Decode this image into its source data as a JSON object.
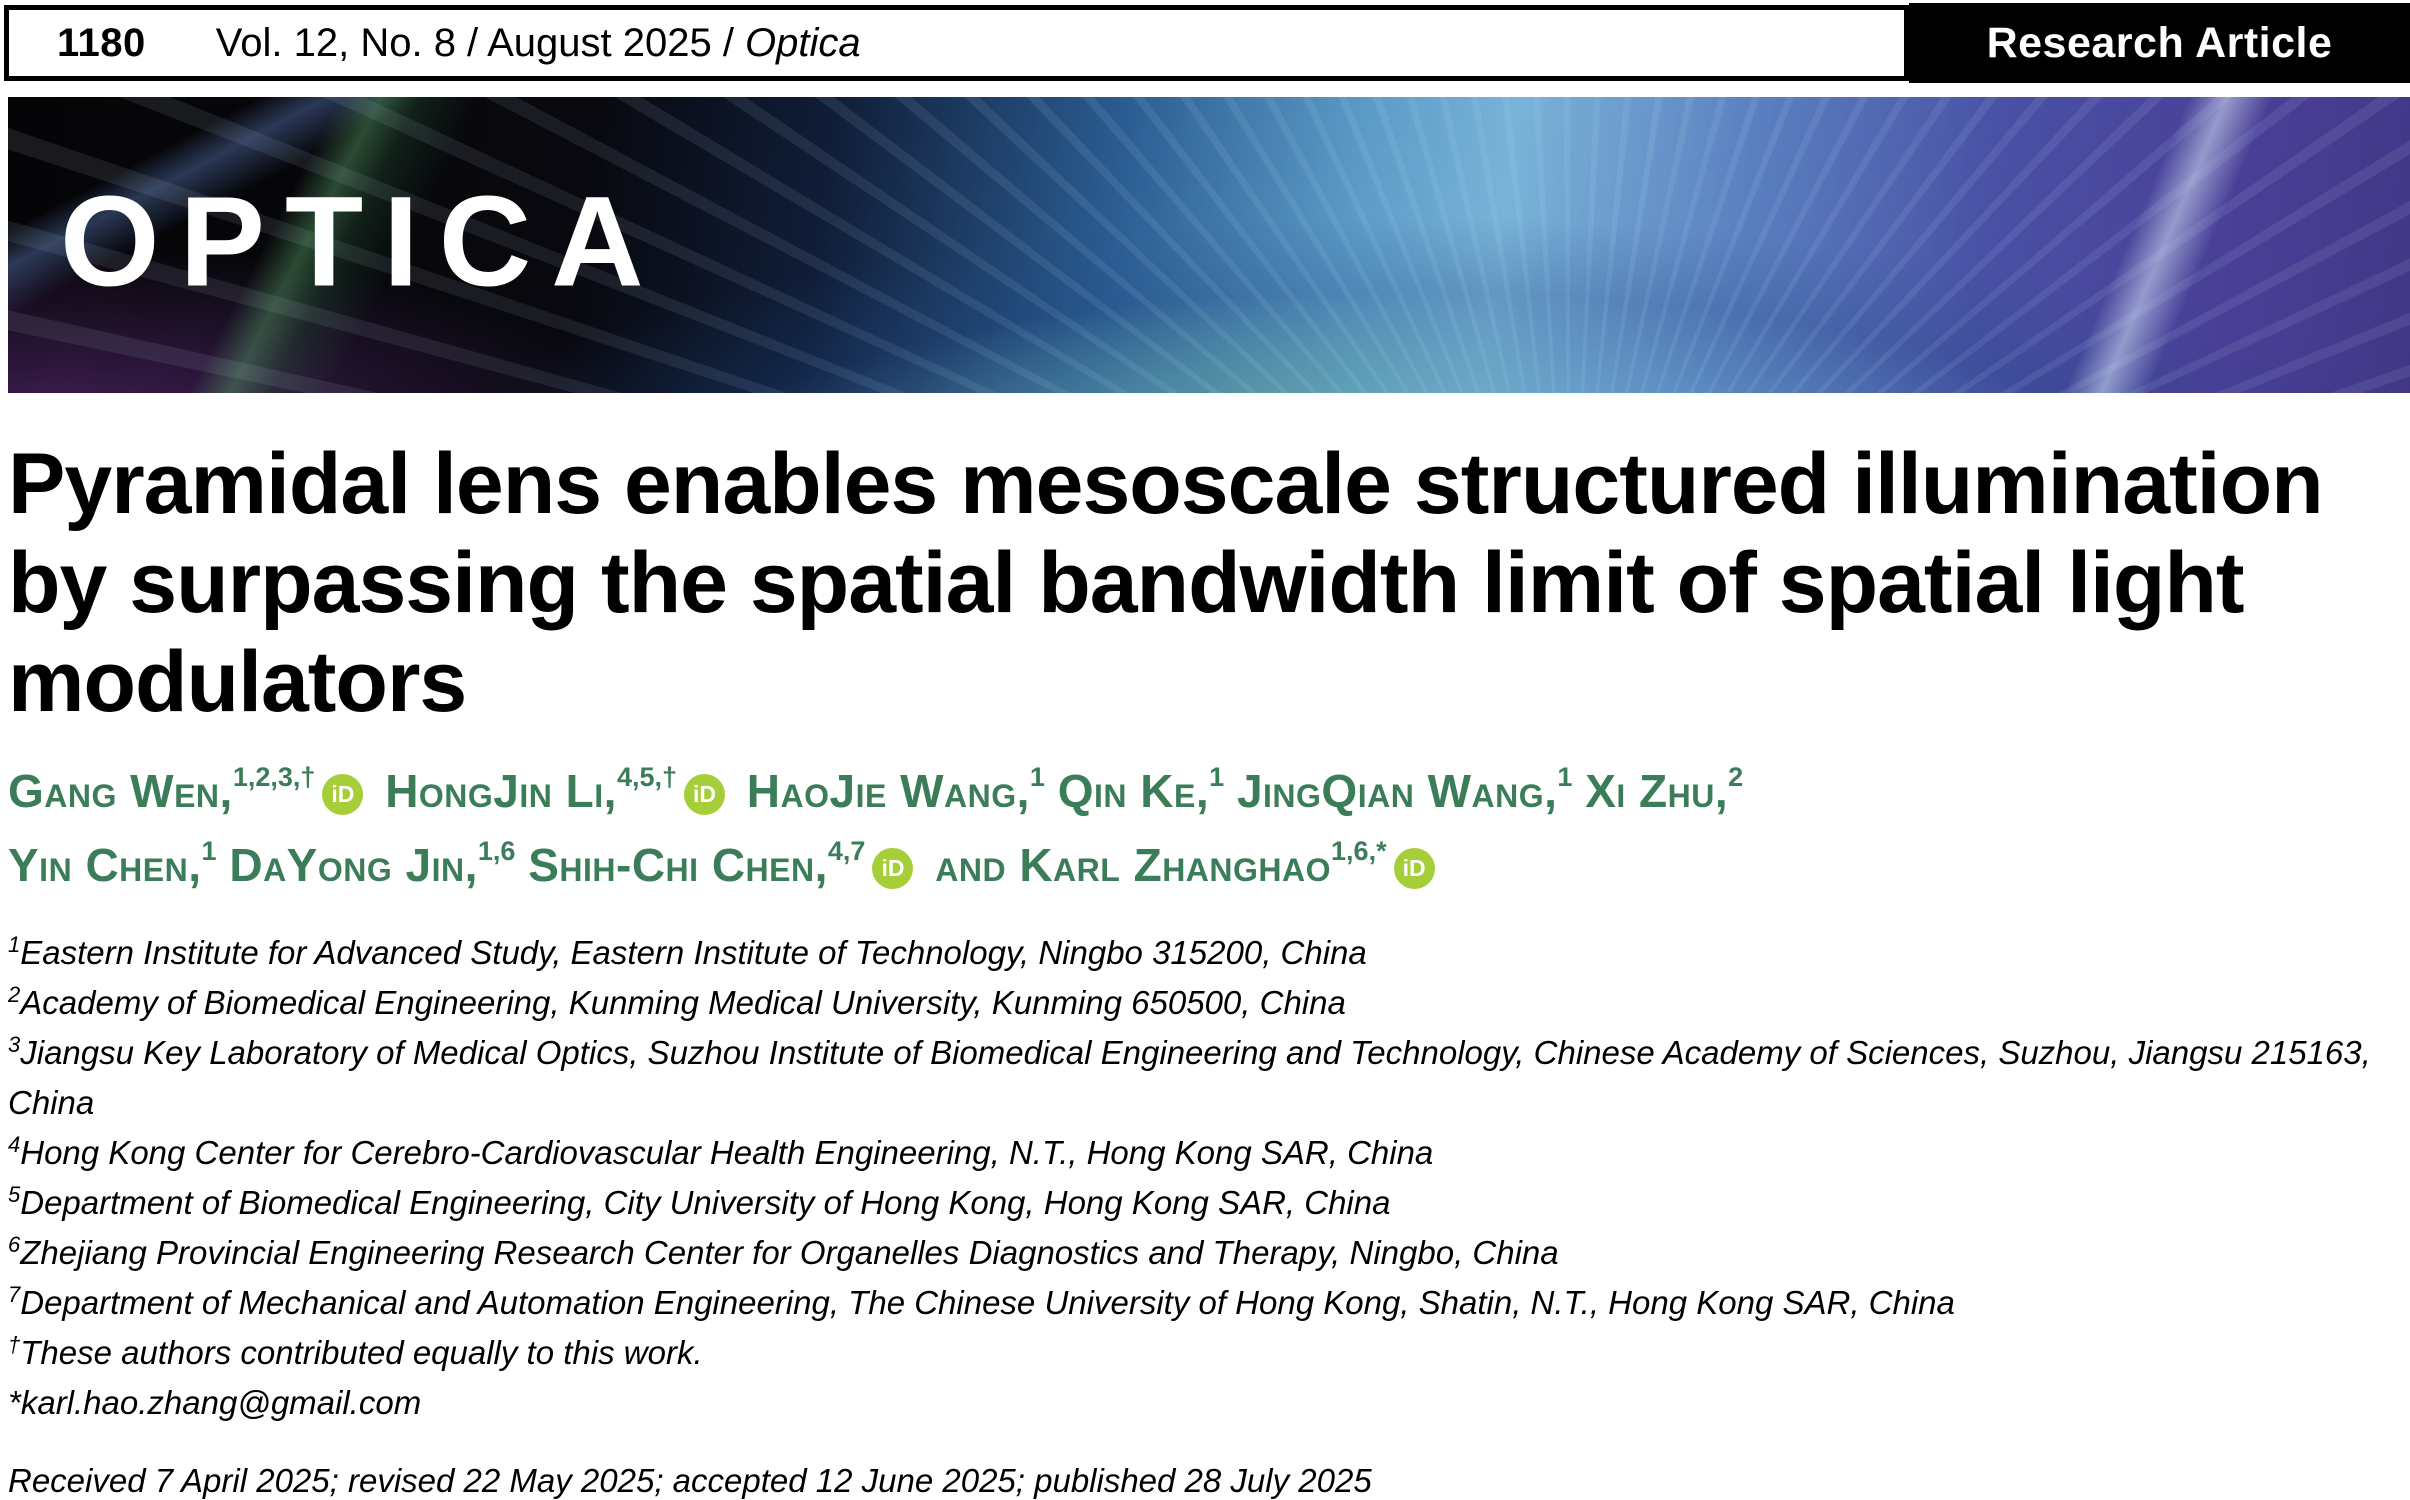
{
  "topbar": {
    "page_number": "1180",
    "issue_info": "Vol. 12, No. 8 / August 2025 / ",
    "journal_name": "Optica",
    "badge": "Research Article"
  },
  "banner": {
    "logo": "OPTICA"
  },
  "title": "Pyramidal lens enables mesoscale structured illumination by surpassing the spatial bandwidth limit of spatial light modulators",
  "authors": {
    "orcid_label": "iD",
    "orcid_color": "#a6ce39",
    "name_color": "#3a7d58",
    "line1": [
      {
        "name": "Gang Wen,",
        "sup": "1,2,3,†",
        "orcid": true
      },
      {
        "name": "HongJin Li,",
        "sup": "4,5,†",
        "orcid": true
      },
      {
        "name": "HaoJie Wang,",
        "sup": "1",
        "orcid": false
      },
      {
        "name": "Qin Ke,",
        "sup": "1",
        "orcid": false
      },
      {
        "name": "JingQian Wang,",
        "sup": "1",
        "orcid": false
      },
      {
        "name": "Xi Zhu,",
        "sup": "2",
        "orcid": false
      }
    ],
    "line2": [
      {
        "name": "Yin Chen,",
        "sup": "1",
        "orcid": false
      },
      {
        "name": "DaYong Jin,",
        "sup": "1,6",
        "orcid": false
      },
      {
        "name": "Shih-Chi Chen,",
        "sup": "4,7",
        "orcid": true
      },
      {
        "name": "and Karl Zhanghao",
        "sup": "1,6,*",
        "orcid": true
      }
    ]
  },
  "affiliations": [
    {
      "sup": "1",
      "text": "Eastern Institute for Advanced Study, Eastern Institute of Technology, Ningbo 315200, China"
    },
    {
      "sup": "2",
      "text": "Academy of Biomedical Engineering, Kunming Medical University, Kunming 650500, China"
    },
    {
      "sup": "3",
      "text": "Jiangsu Key Laboratory of Medical Optics, Suzhou Institute of Biomedical Engineering and Technology, Chinese Academy of Sciences, Suzhou, Jiangsu 215163, China"
    },
    {
      "sup": "4",
      "text": "Hong Kong Center for Cerebro-Cardiovascular Health Engineering, N.T., Hong Kong SAR, China"
    },
    {
      "sup": "5",
      "text": "Department of Biomedical Engineering, City University of Hong Kong, Hong Kong SAR, China"
    },
    {
      "sup": "6",
      "text": "Zhejiang Provincial Engineering Research Center for Organelles Diagnostics and Therapy, Ningbo, China"
    },
    {
      "sup": "7",
      "text": "Department of Mechanical and Automation Engineering, The Chinese University of Hong Kong, Shatin, N.T., Hong Kong SAR, China"
    },
    {
      "sup": "†",
      "text": "These authors contributed equally to this work."
    },
    {
      "sup": "",
      "text": "*karl.hao.zhang@gmail.com"
    }
  ],
  "history": "Received 7 April 2025; revised 22 May 2025; accepted 12 June 2025; published 28 July 2025"
}
